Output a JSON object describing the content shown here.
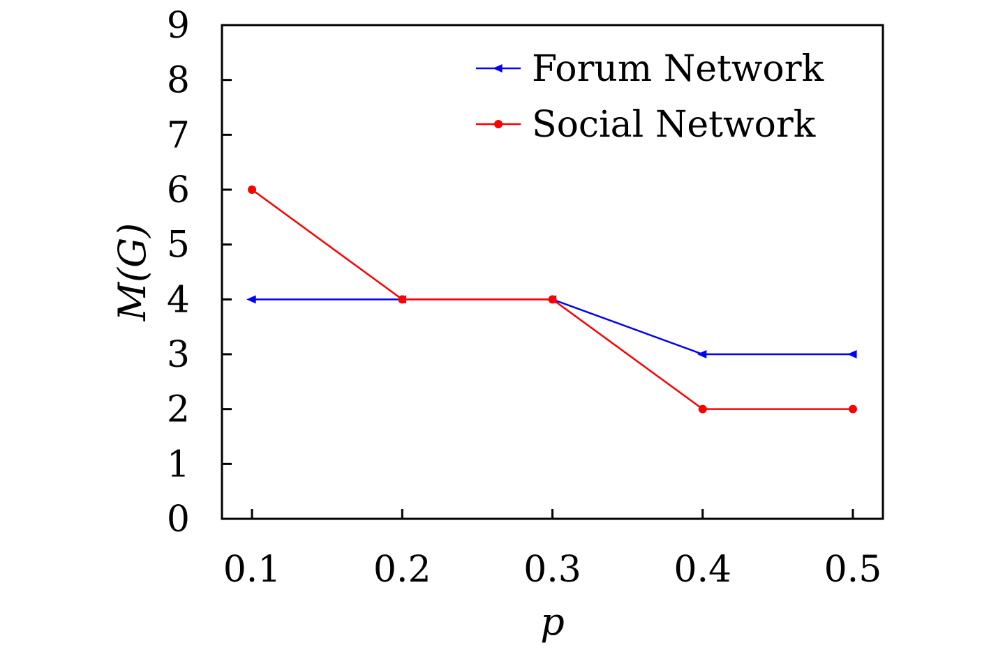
{
  "chart_data": {
    "type": "line",
    "title": "",
    "xlabel": "p",
    "ylabel": "M(G)",
    "x": [
      0.1,
      0.2,
      0.3,
      0.4,
      0.5
    ],
    "x_tick_labels": [
      "0.1",
      "0.2",
      "0.3",
      "0.4",
      "0.5"
    ],
    "y_tick_labels": [
      "0",
      "1",
      "2",
      "3",
      "4",
      "5",
      "6",
      "7",
      "8",
      "9"
    ],
    "xlim": [
      0.08,
      0.52
    ],
    "ylim": [
      0,
      9
    ],
    "grid": false,
    "legend_position": "top-right",
    "series": [
      {
        "name": "Forum Network",
        "values": [
          4,
          4,
          4,
          3,
          3
        ],
        "color": "#0000ff",
        "marker": "left-triangle"
      },
      {
        "name": "Social Network",
        "values": [
          6,
          4,
          4,
          2,
          2
        ],
        "color": "#ff0000",
        "marker": "circle"
      }
    ]
  }
}
